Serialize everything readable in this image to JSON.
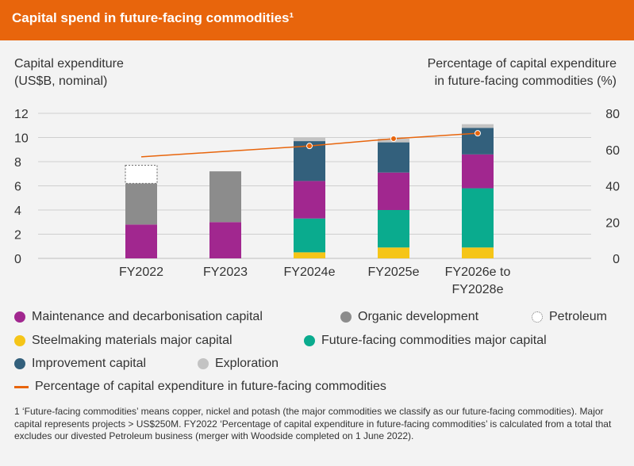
{
  "header": {
    "title": "Capital spend in future-facing commodities¹"
  },
  "axes": {
    "left_title_line1": "Capital expenditure",
    "left_title_line2": "(US$B, nominal)",
    "right_title_line1": "Percentage of capital expenditure",
    "right_title_line2": "in future-facing commodities (%)"
  },
  "chart_data": {
    "type": "bar",
    "stacked": true,
    "categories": [
      [
        "FY2022"
      ],
      [
        "FY2023"
      ],
      [
        "FY2024e"
      ],
      [
        "FY2025e"
      ],
      [
        "FY2026e to",
        "FY2028e"
      ]
    ],
    "y_left": {
      "range": [
        0,
        12
      ],
      "ticks": [
        0,
        2,
        4,
        6,
        8,
        10,
        12
      ]
    },
    "y_right": {
      "range": [
        0,
        80
      ],
      "ticks": [
        0,
        20,
        40,
        60,
        80
      ]
    },
    "grid": true,
    "series": [
      {
        "name": "Steelmaking materials major capital",
        "color": "#f5c518",
        "values": [
          0,
          0,
          0.5,
          0.9,
          0.9
        ]
      },
      {
        "name": "Future-facing commodities major capital",
        "color": "#0aab8e",
        "values": [
          0,
          0,
          2.8,
          3.1,
          4.9
        ]
      },
      {
        "name": "Maintenance and decarbonisation capital",
        "color": "#a1278f",
        "values": [
          2.8,
          3.0,
          3.1,
          3.1,
          2.8
        ]
      },
      {
        "name": "Organic development",
        "color": "#8c8c8c",
        "values": [
          3.4,
          4.2,
          0,
          0,
          0
        ]
      },
      {
        "name": "Improvement capital",
        "color": "#33607c",
        "values": [
          0,
          0,
          3.3,
          2.5,
          2.2
        ]
      },
      {
        "name": "Exploration",
        "color": "#c3c3c3",
        "values": [
          0,
          0,
          0.3,
          0.3,
          0.3
        ]
      },
      {
        "name": "Petroleum",
        "color": "#ffffff",
        "dashed": true,
        "values": [
          1.5,
          0,
          0,
          0,
          0
        ]
      }
    ],
    "line": {
      "name": "Percentage of capital expenditure in future-facing commodities",
      "color": "#e8650c",
      "values": [
        56,
        59,
        62,
        66,
        69
      ],
      "markers": [
        false,
        false,
        true,
        true,
        true
      ]
    }
  },
  "legend": {
    "maintenance": "Maintenance and decarbonisation capital",
    "organic": "Organic development",
    "petroleum": "Petroleum",
    "steelmaking": "Steelmaking materials major capital",
    "future_facing": "Future-facing commodities major capital",
    "improvement": "Improvement capital",
    "exploration": "Exploration",
    "percentage": "Percentage of capital expenditure in future-facing commodities",
    "colors": {
      "maintenance": "#a1278f",
      "organic": "#8c8c8c",
      "steelmaking": "#f5c518",
      "future_facing": "#0aab8e",
      "improvement": "#33607c",
      "exploration": "#c3c3c3",
      "line": "#e8650c"
    }
  },
  "footnote": "1 ‘Future-facing commodities’ means copper, nickel and potash (the major commodities we classify as our future-facing commodities). Major capital represents projects > US$250M. FY2022 ‘Percentage of capital expenditure in future-facing commodities’ is calculated from a total that excludes our divested Petroleum business (merger with Woodside completed on 1 June 2022)."
}
